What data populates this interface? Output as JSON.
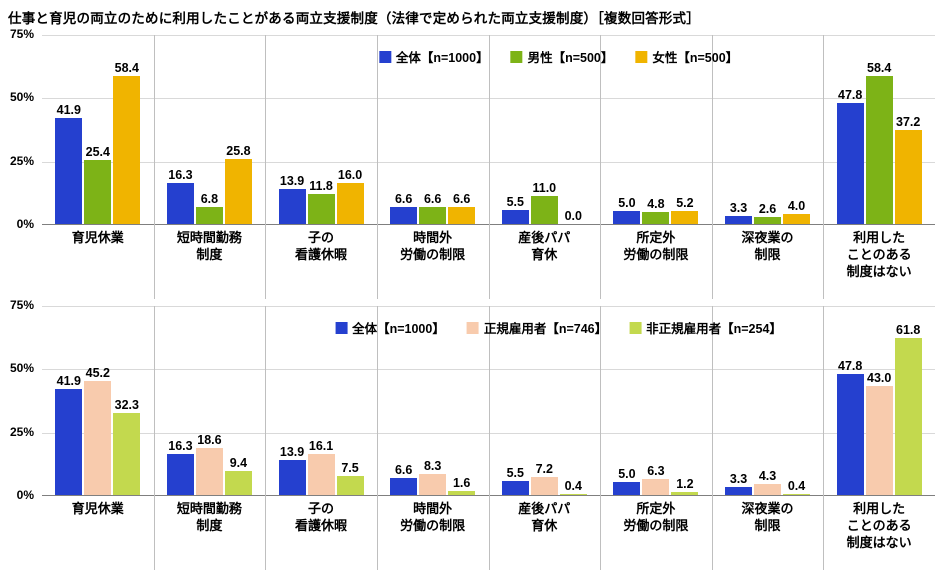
{
  "title": "仕事と育児の両立のために利用したことがある両立支援制度（法律で定められた両立支援制度）［複数回答形式］",
  "chart_data": [
    {
      "type": "bar",
      "title": "",
      "categories": [
        "育児休業",
        "短時間勤務\n制度",
        "子の\n看護休暇",
        "時間外\n労働の制限",
        "産後パパ\n育休",
        "所定外\n労働の制限",
        "深夜業の\n制限",
        "利用した\nことのある\n制度はない"
      ],
      "series": [
        {
          "name": "全体【n=1000】",
          "color": "#2540cf",
          "values": [
            41.9,
            16.3,
            13.9,
            6.6,
            5.5,
            5.0,
            3.3,
            47.8
          ]
        },
        {
          "name": "男性【n=500】",
          "color": "#7db317",
          "values": [
            25.4,
            6.8,
            11.8,
            6.6,
            11.0,
            4.8,
            2.6,
            58.4
          ]
        },
        {
          "name": "女性【n=500】",
          "color": "#f0b400",
          "values": [
            58.4,
            25.8,
            16.0,
            6.6,
            0.0,
            5.2,
            4.0,
            37.2
          ]
        }
      ],
      "ylim": [
        0,
        75
      ],
      "yticks": [
        "0%",
        "25%",
        "50%",
        "75%"
      ],
      "grid": true,
      "legend_position": "top"
    },
    {
      "type": "bar",
      "title": "",
      "categories": [
        "育児休業",
        "短時間勤務\n制度",
        "子の\n看護休暇",
        "時間外\n労働の制限",
        "産後パパ\n育休",
        "所定外\n労働の制限",
        "深夜業の\n制限",
        "利用した\nことのある\n制度はない"
      ],
      "series": [
        {
          "name": "全体【n=1000】",
          "color": "#2540cf",
          "values": [
            41.9,
            16.3,
            13.9,
            6.6,
            5.5,
            5.0,
            3.3,
            47.8
          ]
        },
        {
          "name": "正規雇用者【n=746】",
          "color": "#f8cbad",
          "values": [
            45.2,
            18.6,
            16.1,
            8.3,
            7.2,
            6.3,
            4.3,
            43.0
          ]
        },
        {
          "name": "非正規雇用者【n=254】",
          "color": "#c3d94e",
          "values": [
            32.3,
            9.4,
            7.5,
            1.6,
            0.4,
            1.2,
            0.4,
            61.8
          ]
        }
      ],
      "ylim": [
        0,
        75
      ],
      "yticks": [
        "0%",
        "25%",
        "50%",
        "75%"
      ],
      "grid": true,
      "legend_position": "top"
    }
  ]
}
